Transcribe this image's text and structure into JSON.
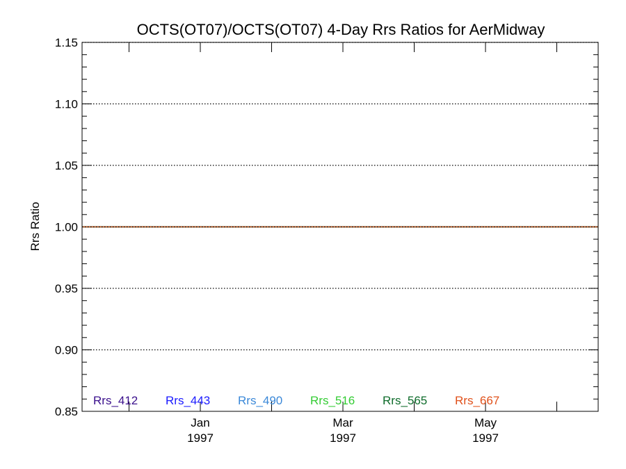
{
  "chart_data": {
    "type": "line",
    "title": "OCTS(OT07)/OCTS(OT07) 4-Day Rrs Ratios for AerMidway",
    "xlabel": "",
    "ylabel": "Rrs Ratio",
    "ylim": [
      0.85,
      1.16
    ],
    "y_ticks": [
      "0.85",
      "0.90",
      "0.95",
      "1.00",
      "1.05",
      "1.10",
      "1.15"
    ],
    "x_ticks": [
      {
        "month": "Jan",
        "year": "1997"
      },
      {
        "month": "Mar",
        "year": "1997"
      },
      {
        "month": "May",
        "year": "1997"
      }
    ],
    "grid": "horizontal dotted at major y ticks",
    "reference_line": {
      "y": 1.0,
      "color": "#000000"
    },
    "series": [
      {
        "name": "Rrs_412",
        "color": "#3a0f8c",
        "values": [
          1.0,
          1.0
        ]
      },
      {
        "name": "Rrs_443",
        "color": "#1a1aff",
        "values": [
          1.0,
          1.0
        ]
      },
      {
        "name": "Rrs_490",
        "color": "#3a88d8",
        "values": [
          1.0,
          1.0
        ]
      },
      {
        "name": "Rrs_516",
        "color": "#33cc33",
        "values": [
          1.0,
          1.0
        ]
      },
      {
        "name": "Rrs_565",
        "color": "#0d6b2a",
        "values": [
          1.0,
          1.0
        ]
      },
      {
        "name": "Rrs_667",
        "color": "#e0501a",
        "values": [
          1.0,
          1.0
        ]
      }
    ],
    "legend_placement": "bottom inside plot"
  }
}
